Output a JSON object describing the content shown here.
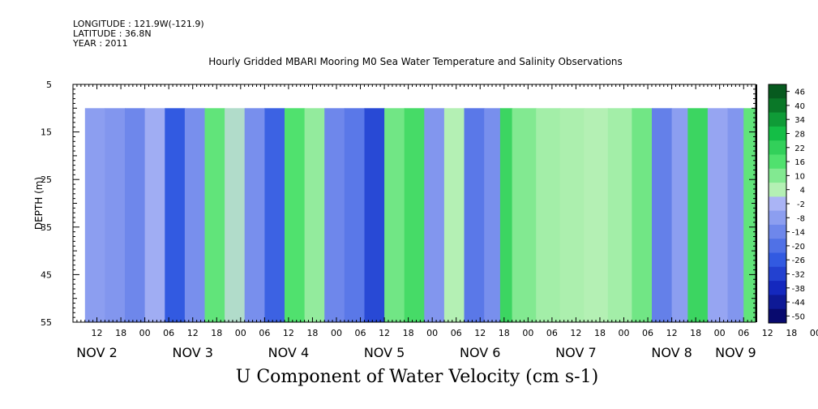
{
  "header": {
    "longitude": "LONGITUDE : 121.9W(-121.9)",
    "latitude": "LATITUDE : 36.8N",
    "year": "YEAR : 2011"
  },
  "chart_data": {
    "type": "heatmap",
    "title": "Hourly Gridded MBARI Mooring M0 Sea Water Temperature and Salinity Observations",
    "xlabel": "U Component of Water Velocity (cm s-1)",
    "ylabel": "DEPTH (m)",
    "y_axis": {
      "range": [
        5,
        55
      ],
      "inverted": true,
      "tick_labels": [
        "5",
        "15",
        "25",
        "35",
        "45",
        "55"
      ]
    },
    "x_axis": {
      "hour_tick_labels": [
        "12",
        "18",
        "00",
        "06",
        "12",
        "18",
        "00",
        "06",
        "12",
        "18",
        "00",
        "06",
        "12",
        "18",
        "00",
        "06",
        "12",
        "18",
        "00",
        "06",
        "12",
        "18",
        "00",
        "06",
        "12",
        "18",
        "00",
        "06",
        "12",
        "18",
        "00",
        "06"
      ],
      "day_labels": [
        "NOV 2",
        "NOV 3",
        "NOV 4",
        "NOV 5",
        "NOV 6",
        "NOV 7",
        "NOV 8",
        "NOV 9"
      ],
      "range": [
        "2011-11-02 06:00",
        "2011-11-09 09:00"
      ]
    },
    "colorbar": {
      "labels": [
        "46",
        "40",
        "34",
        "28",
        "22",
        "16",
        "10",
        "4",
        "-2",
        "-8",
        "-14",
        "-20",
        "-26",
        "-32",
        "-38",
        "-44",
        "-50"
      ],
      "range": [
        -50,
        50
      ],
      "colors": {
        "strong_negative": "#0a1a8a",
        "negative": "#4a6ee0",
        "weak_negative": "#a9b4ef",
        "weak_positive": "#b7f0b5",
        "positive": "#44e06a",
        "strong_positive": "#0a5a20"
      }
    },
    "data_depth_range": [
      10,
      55
    ],
    "columns": [
      [
        "2011-11-02 09:00",
        -8
      ],
      [
        "2011-11-02 14:00",
        -10
      ],
      [
        "2011-11-02 19:00",
        -14
      ],
      [
        "2011-11-03 00:00",
        -4
      ],
      [
        "2011-11-03 05:00",
        -26
      ],
      [
        "2011-11-03 10:00",
        -12
      ],
      [
        "2011-11-03 15:00",
        14
      ],
      [
        "2011-11-03 20:00",
        2
      ],
      [
        "2011-11-04 01:00",
        -12
      ],
      [
        "2011-11-04 06:00",
        -24
      ],
      [
        "2011-11-04 11:00",
        16
      ],
      [
        "2011-11-04 16:00",
        8
      ],
      [
        "2011-11-04 21:00",
        -14
      ],
      [
        "2011-11-05 02:00",
        -18
      ],
      [
        "2011-11-05 07:00",
        -30
      ],
      [
        "2011-11-05 12:00",
        12
      ],
      [
        "2011-11-05 17:00",
        18
      ],
      [
        "2011-11-05 22:00",
        -10
      ],
      [
        "2011-11-06 03:00",
        4
      ],
      [
        "2011-11-06 08:00",
        -18
      ],
      [
        "2011-11-06 13:00",
        -12
      ],
      [
        "2011-11-06 17:00",
        20
      ],
      [
        "2011-11-06 20:00",
        10
      ],
      [
        "2011-11-07 02:00",
        6
      ],
      [
        "2011-11-07 08:00",
        5
      ],
      [
        "2011-11-07 14:00",
        4
      ],
      [
        "2011-11-07 20:00",
        6
      ],
      [
        "2011-11-08 02:00",
        12
      ],
      [
        "2011-11-08 07:00",
        -16
      ],
      [
        "2011-11-08 12:00",
        -8
      ],
      [
        "2011-11-08 16:00",
        20
      ],
      [
        "2011-11-08 21:00",
        -6
      ],
      [
        "2011-11-09 02:00",
        -10
      ],
      [
        "2011-11-09 06:00",
        14
      ]
    ]
  }
}
